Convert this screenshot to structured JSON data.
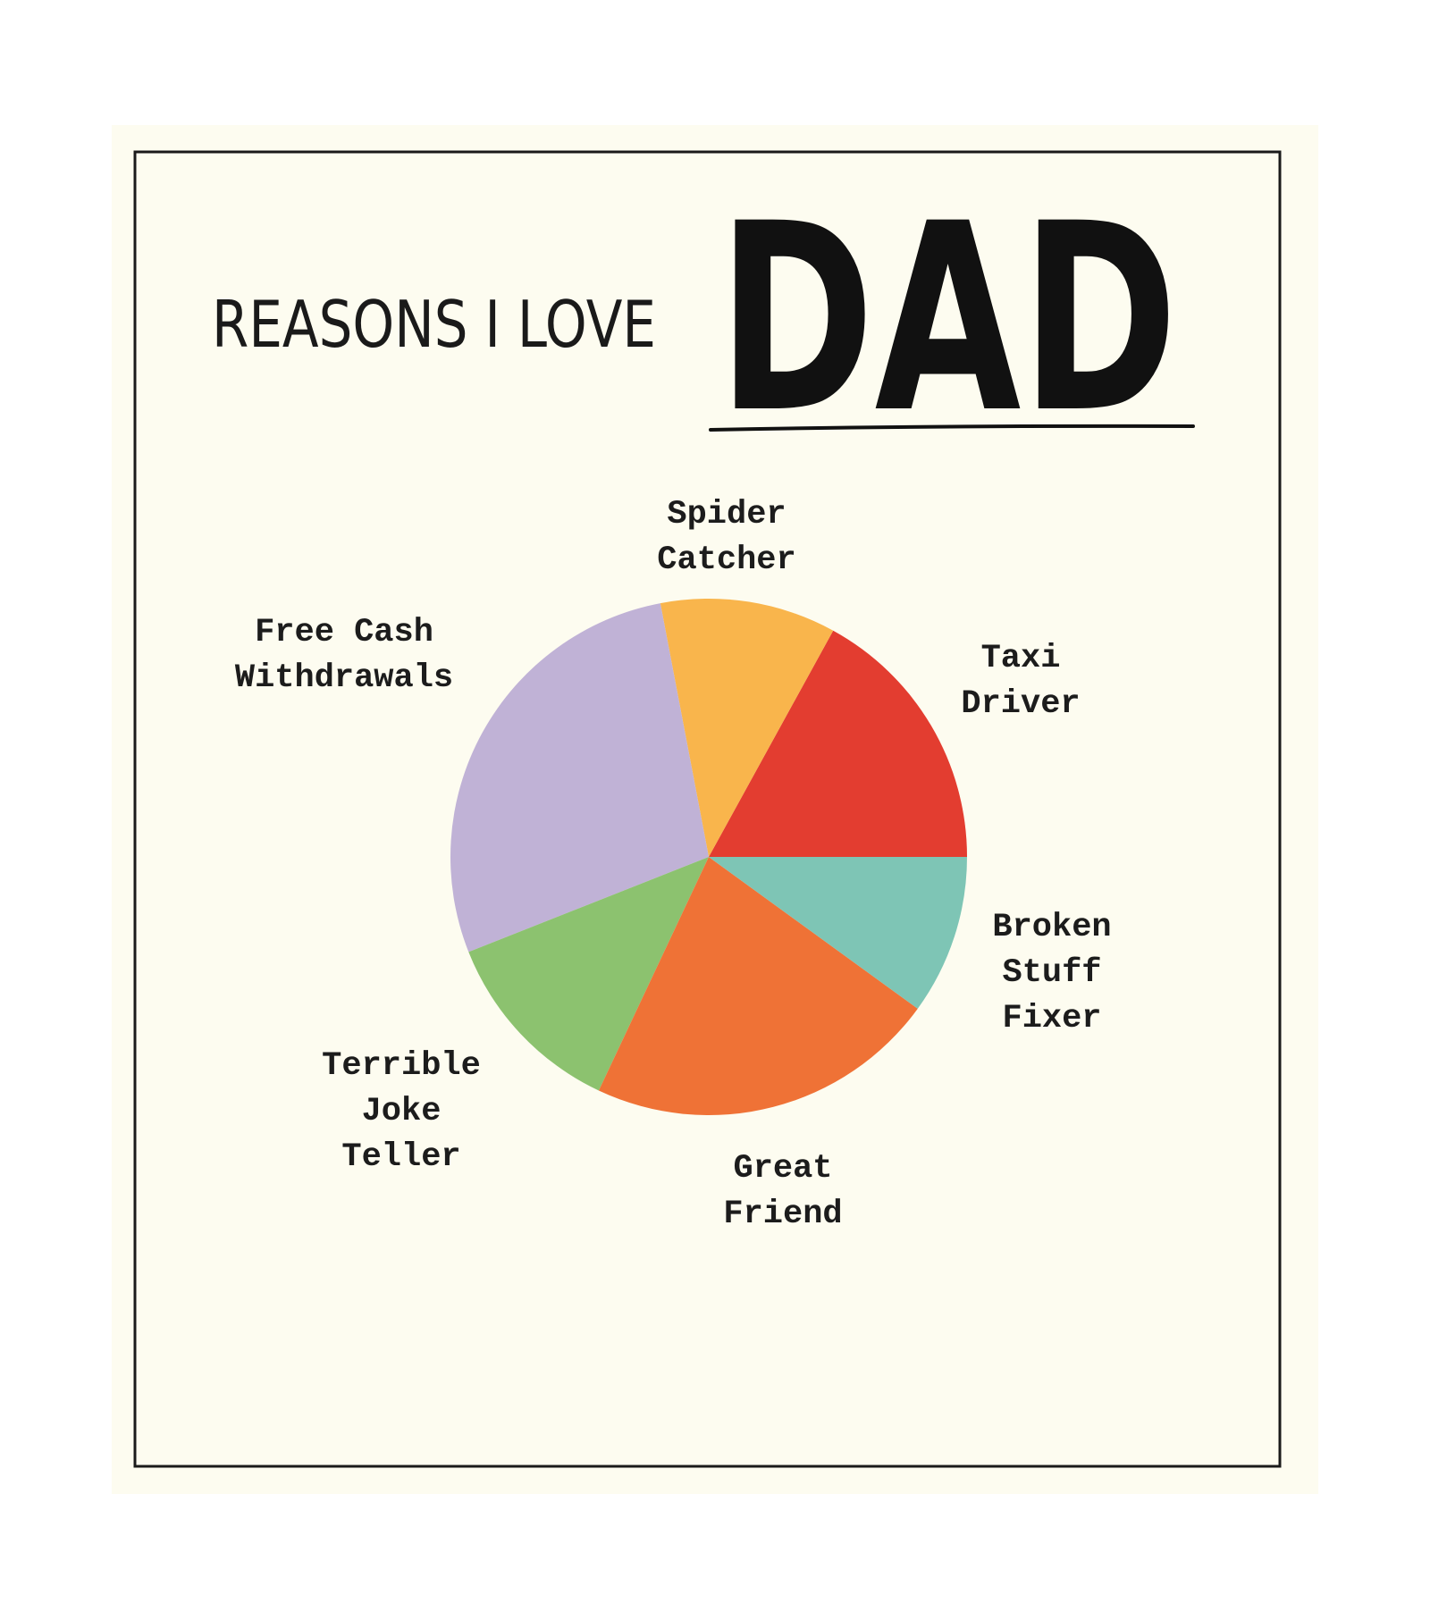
{
  "chart_data": {
    "type": "pie",
    "title": "REASONS I LOVE",
    "subject": "DAD",
    "categories": [
      "Taxi\nDriver",
      "Spider\nCatcher",
      "Free Cash\nWithdrawals",
      "Terrible\nJoke\nTeller",
      "Great\nFriend",
      "Broken\nStuff\nFixer"
    ],
    "values": [
      17,
      11,
      28,
      12,
      22,
      10
    ],
    "colors": [
      "#e33d30",
      "#f9b54c",
      "#c0b2d6",
      "#8cc26f",
      "#ef7236",
      "#7ec5b5"
    ]
  }
}
